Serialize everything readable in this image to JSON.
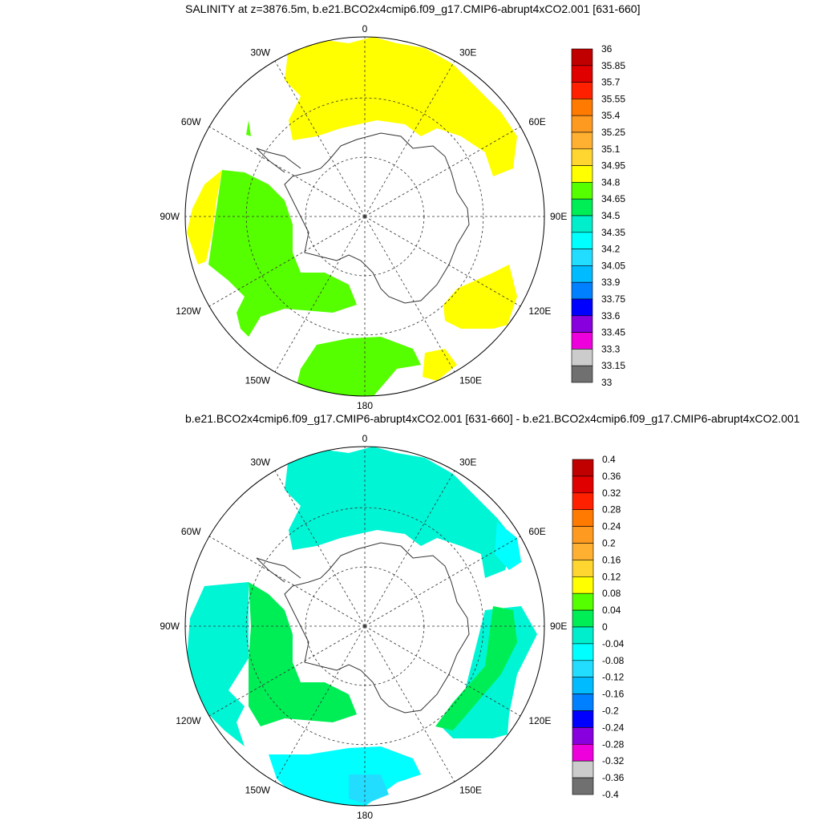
{
  "panels": [
    {
      "title": "SALINITY at z=3876.5m, b.e21.BCO2x4cmip6.f09_g17.CMIP6-abrupt4xCO2.001 [631-660]",
      "lon_labels": [
        "0",
        "30E",
        "60E",
        "90E",
        "120E",
        "150E",
        "180",
        "150W",
        "120W",
        "90W",
        "60W",
        "30W"
      ],
      "colorbar": {
        "labels": [
          "36",
          "35.85",
          "35.7",
          "35.55",
          "35.4",
          "35.25",
          "35.1",
          "34.95",
          "34.8",
          "34.65",
          "34.5",
          "34.35",
          "34.2",
          "34.05",
          "33.9",
          "33.75",
          "33.6",
          "33.45",
          "33.3",
          "33.15",
          "33"
        ],
        "colors": [
          "#c00000",
          "#e00000",
          "#ff2000",
          "#ff7a00",
          "#ff9a20",
          "#ffb030",
          "#ffd530",
          "#ffff00",
          "#55ff00",
          "#00ee55",
          "#00eecc",
          "#00ffff",
          "#22ddff",
          "#00bbff",
          "#0080ff",
          "#0000ff",
          "#8800dd",
          "#ee00dd",
          "#cccccc",
          "#707070"
        ]
      }
    },
    {
      "title": "b.e21.BCO2x4cmip6.f09_g17.CMIP6-abrupt4xCO2.001 [631-660] - b.e21.BCO2x4cmip6.f09_g17.CMIP6-abrupt4xCO2.001",
      "lon_labels": [
        "0",
        "30E",
        "60E",
        "90E",
        "120E",
        "150E",
        "180",
        "150W",
        "120W",
        "90W",
        "60W",
        "30W"
      ],
      "colorbar": {
        "labels": [
          "0.4",
          "0.36",
          "0.32",
          "0.28",
          "0.24",
          "0.2",
          "0.16",
          "0.12",
          "0.08",
          "0.04",
          "0",
          "-0.04",
          "-0.08",
          "-0.12",
          "-0.16",
          "-0.2",
          "-0.24",
          "-0.28",
          "-0.32",
          "-0.36",
          "-0.4"
        ],
        "colors": [
          "#c00000",
          "#e00000",
          "#ff2000",
          "#ff7a00",
          "#ff9a20",
          "#ffb030",
          "#ffd530",
          "#ffff00",
          "#55ff00",
          "#00ee55",
          "#00eecc",
          "#00ffff",
          "#22ddff",
          "#00bbff",
          "#0080ff",
          "#0000ff",
          "#8800dd",
          "#ee00dd",
          "#cccccc",
          "#707070"
        ]
      }
    }
  ],
  "field_colors": {
    "yellow": "#ffff00",
    "green": "#55ff00",
    "aqua": "#00f5d5",
    "cyan": "#00ffff",
    "green2": "#00ee55",
    "sky": "#22ddff"
  }
}
